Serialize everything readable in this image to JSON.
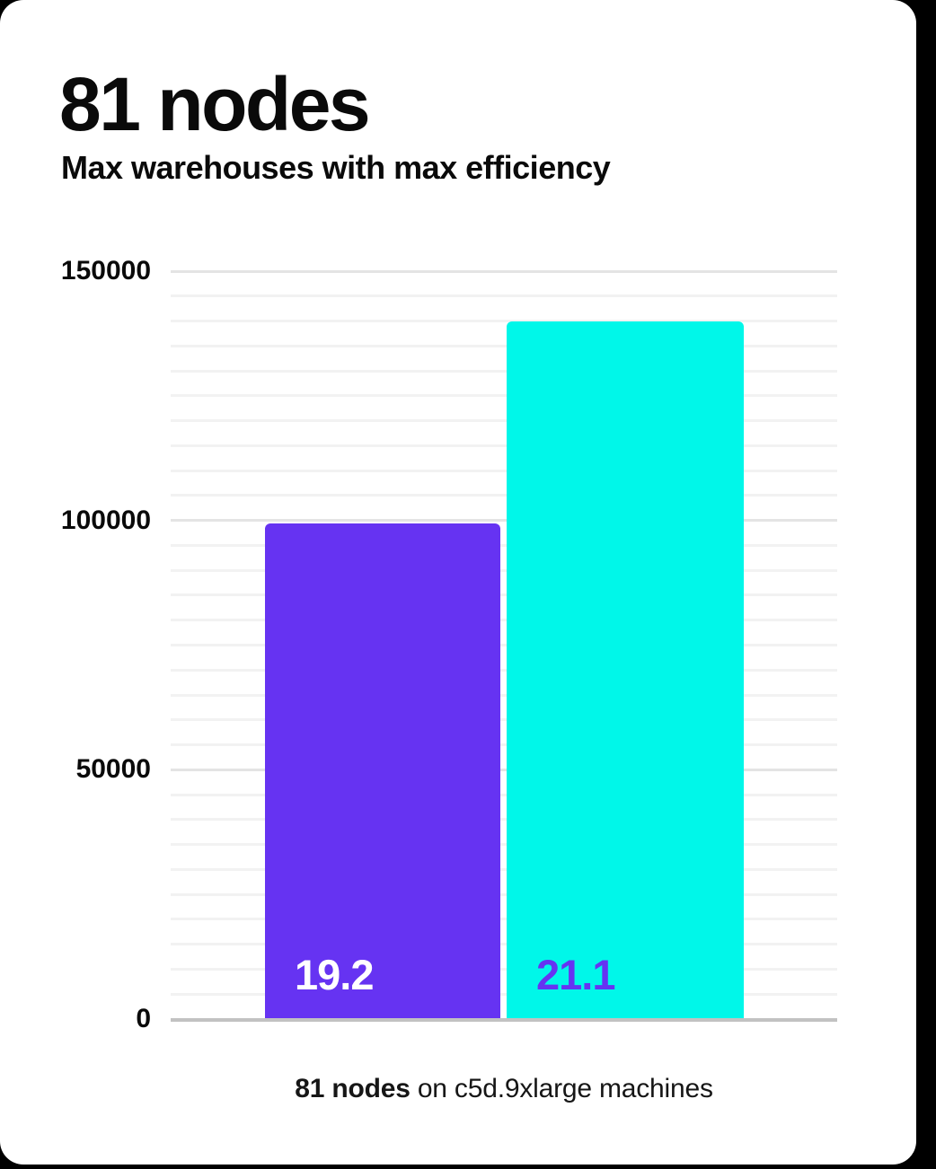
{
  "card": {
    "title": "81 nodes",
    "subtitle": "Max warehouses with max efficiency",
    "caption_bold": "81 nodes",
    "caption_rest": " on c5d.9xlarge machines"
  },
  "colors": {
    "page_background": "#000000",
    "card_background": "#ffffff",
    "text": "#0a0a0a",
    "bar_purple": "#6633f2",
    "bar_cyan": "#00f7e9",
    "bar_label_on_purple": "#ffffff",
    "bar_label_on_cyan": "#6633f2",
    "grid_minor": "#f2f2f2",
    "grid_major": "#e4e4e4",
    "axis_baseline": "#c2c2c2"
  },
  "chart_data": {
    "type": "bar",
    "title": "81 nodes",
    "subtitle": "Max warehouses with max efficiency",
    "categories": [
      "19.2",
      "21.1"
    ],
    "values": [
      99400,
      140000
    ],
    "bar_labels": [
      "19.2",
      "21.1"
    ],
    "bar_colors": [
      "#6633f2",
      "#00f7e9"
    ],
    "bar_label_colors": [
      "#ffffff",
      "#6633f2"
    ],
    "xlabel": "",
    "ylabel": "",
    "ylim": [
      0,
      150000
    ],
    "yticks": [
      0,
      50000,
      100000,
      150000
    ],
    "grid_minor_step": 5000,
    "grid_major_step": 50000,
    "grid": "on",
    "legend_position": "none",
    "caption": "81 nodes on c5d.9xlarge machines"
  }
}
